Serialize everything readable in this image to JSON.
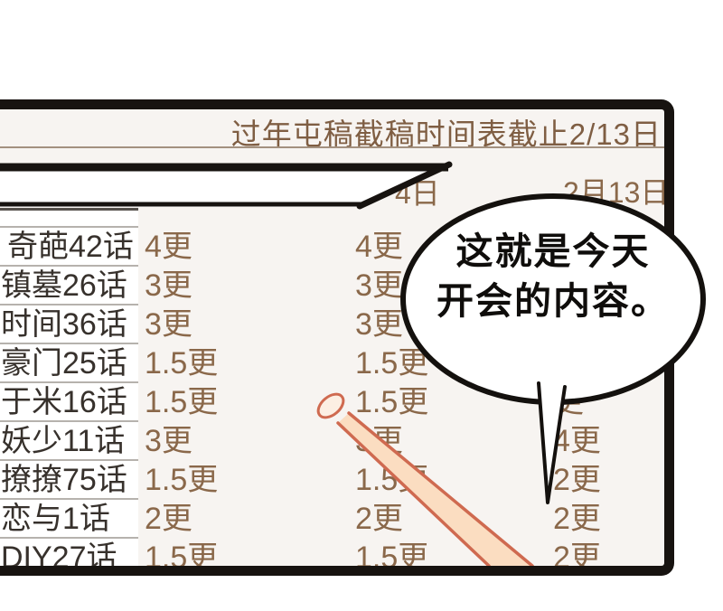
{
  "panel": {
    "title": "过年屯稿截稿时间表截止2/13日",
    "date_header_partial": "4日",
    "date_header_right": "2月13日"
  },
  "table": {
    "rows": [
      {
        "title": "奇葩42话",
        "c2": "4更",
        "c3": "4更",
        "c4": ""
      },
      {
        "title": "镇墓26话",
        "c2": "3更",
        "c3": "3更",
        "c4": ""
      },
      {
        "title": "时间36话",
        "c2": "3更",
        "c3": "3更",
        "c4": ""
      },
      {
        "title": "豪门25话",
        "c2": "1.5更",
        "c3": "1.5更",
        "c4": ""
      },
      {
        "title": "于米16话",
        "c2": "1.5更",
        "c3": "1.5更",
        "c4": "更"
      },
      {
        "title": "妖少11话",
        "c2": "3更",
        "c3": "3更",
        "c4": "4更"
      },
      {
        "title": "撩撩75话",
        "c2": "1.5更",
        "c3": "1.5更",
        "c4": "2更"
      },
      {
        "title": "恋与1话",
        "c2": "2更",
        "c3": "2更",
        "c4": "2更"
      },
      {
        "title": "DIY27话",
        "c2": "1.5更",
        "c3": "1.5更",
        "c4": "2更"
      }
    ]
  },
  "speech_bubble": {
    "line1": "这就是今天",
    "line2": "开会的内容。"
  },
  "colors": {
    "ink": "#171310",
    "panel_bg": "#f7f4f1",
    "title_brown": "#7f5e43",
    "value_brown": "#8a684a",
    "row_title_dark": "#37312c",
    "separator_gray": "#b6b2ad",
    "header_line_dark": "#55504b",
    "title_rule": "#a3917f",
    "stick_outline": "#cf6a50",
    "stick_fill": "#fbddc1",
    "stick_tip_fill": "#fcefe3",
    "bubble_fill": "#ffffff"
  }
}
